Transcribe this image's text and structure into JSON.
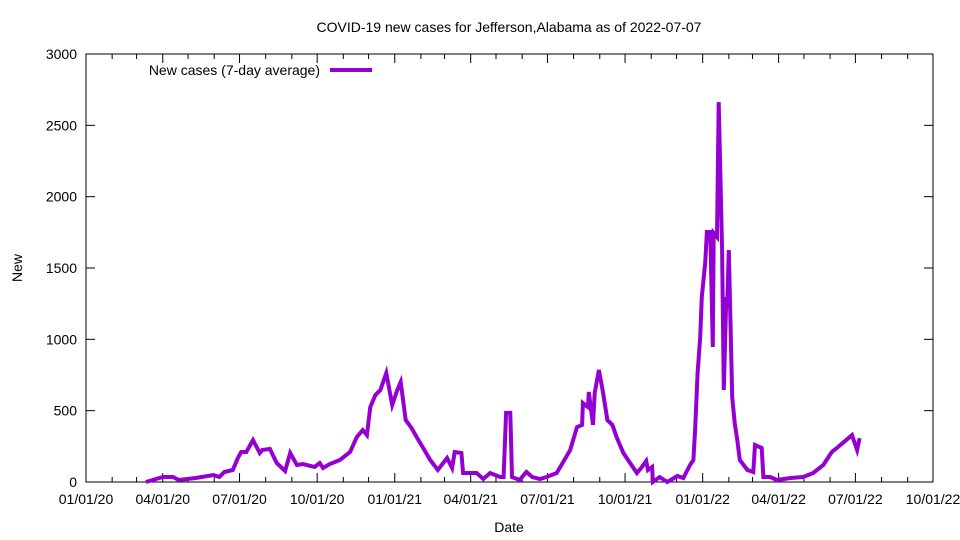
{
  "chart_data": {
    "type": "line",
    "title": "COVID-19 new cases for Jefferson,Alabama as of 2022-07-07",
    "xlabel": "Date",
    "ylabel": "New",
    "xlim": [
      "2020-01-01",
      "2022-10-01"
    ],
    "ylim": [
      0,
      3000
    ],
    "xticks": [
      "01/01/20",
      "04/01/20",
      "07/01/20",
      "10/01/20",
      "01/01/21",
      "04/01/21",
      "07/01/21",
      "10/01/21",
      "01/01/22",
      "04/01/22",
      "07/01/22",
      "10/01/22"
    ],
    "xtick_dates": [
      "2020-01-01",
      "2020-04-01",
      "2020-07-01",
      "2020-10-01",
      "2021-01-01",
      "2021-04-01",
      "2021-07-01",
      "2021-10-01",
      "2022-01-01",
      "2022-04-01",
      "2022-07-01",
      "2022-10-01"
    ],
    "yticks": [
      0,
      500,
      1000,
      1500,
      2000,
      2500,
      3000
    ],
    "grid": false,
    "legend_position": "top-left",
    "series": [
      {
        "name": "New cases (7-day average)",
        "color": "#9400d3",
        "points": [
          [
            "2020-03-12",
            0
          ],
          [
            "2020-04-01",
            35
          ],
          [
            "2020-04-13",
            35
          ],
          [
            "2020-04-20",
            14
          ],
          [
            "2020-05-10",
            28
          ],
          [
            "2020-05-31",
            49
          ],
          [
            "2020-06-07",
            35
          ],
          [
            "2020-06-13",
            70
          ],
          [
            "2020-06-23",
            84
          ],
          [
            "2020-06-29",
            168
          ],
          [
            "2020-07-03",
            210
          ],
          [
            "2020-07-09",
            210
          ],
          [
            "2020-07-17",
            294
          ],
          [
            "2020-07-25",
            203
          ],
          [
            "2020-07-28",
            224
          ],
          [
            "2020-08-06",
            232
          ],
          [
            "2020-08-14",
            133
          ],
          [
            "2020-08-24",
            77
          ],
          [
            "2020-08-30",
            203
          ],
          [
            "2020-09-07",
            119
          ],
          [
            "2020-09-14",
            126
          ],
          [
            "2020-09-28",
            105
          ],
          [
            "2020-10-04",
            133
          ],
          [
            "2020-10-08",
            98
          ],
          [
            "2020-10-16",
            126
          ],
          [
            "2020-10-28",
            154
          ],
          [
            "2020-11-09",
            210
          ],
          [
            "2020-11-17",
            315
          ],
          [
            "2020-11-24",
            364
          ],
          [
            "2020-11-29",
            329
          ],
          [
            "2020-12-03",
            526
          ],
          [
            "2020-12-09",
            610
          ],
          [
            "2020-12-15",
            645
          ],
          [
            "2020-12-22",
            764
          ],
          [
            "2020-12-29",
            540
          ],
          [
            "2021-01-04",
            645
          ],
          [
            "2021-01-08",
            701
          ],
          [
            "2021-01-14",
            434
          ],
          [
            "2021-01-21",
            378
          ],
          [
            "2021-01-29",
            294
          ],
          [
            "2021-02-03",
            245
          ],
          [
            "2021-02-12",
            154
          ],
          [
            "2021-02-21",
            84
          ],
          [
            "2021-03-04",
            168
          ],
          [
            "2021-03-10",
            98
          ],
          [
            "2021-03-13",
            210
          ],
          [
            "2021-03-21",
            203
          ],
          [
            "2021-03-23",
            63
          ],
          [
            "2021-04-08",
            63
          ],
          [
            "2021-04-16",
            21
          ],
          [
            "2021-04-24",
            63
          ],
          [
            "2021-05-06",
            35
          ],
          [
            "2021-05-10",
            35
          ],
          [
            "2021-05-13",
            484
          ],
          [
            "2021-05-18",
            484
          ],
          [
            "2021-05-20",
            35
          ],
          [
            "2021-05-29",
            14
          ],
          [
            "2021-06-06",
            70
          ],
          [
            "2021-06-13",
            35
          ],
          [
            "2021-06-22",
            21
          ],
          [
            "2021-06-30",
            35
          ],
          [
            "2021-07-12",
            63
          ],
          [
            "2021-07-19",
            133
          ],
          [
            "2021-07-28",
            224
          ],
          [
            "2021-08-05",
            385
          ],
          [
            "2021-08-11",
            400
          ],
          [
            "2021-08-12",
            554
          ],
          [
            "2021-08-18",
            526
          ],
          [
            "2021-08-19",
            631
          ],
          [
            "2021-08-24",
            400
          ],
          [
            "2021-08-26",
            624
          ],
          [
            "2021-08-31",
            785
          ],
          [
            "2021-09-05",
            624
          ],
          [
            "2021-09-10",
            434
          ],
          [
            "2021-09-16",
            400
          ],
          [
            "2021-09-21",
            315
          ],
          [
            "2021-09-29",
            203
          ],
          [
            "2021-10-07",
            133
          ],
          [
            "2021-10-15",
            63
          ],
          [
            "2021-10-21",
            105
          ],
          [
            "2021-10-26",
            147
          ],
          [
            "2021-10-28",
            84
          ],
          [
            "2021-11-02",
            105
          ],
          [
            "2021-11-03",
            0
          ],
          [
            "2021-11-11",
            35
          ],
          [
            "2021-11-20",
            0
          ],
          [
            "2021-12-02",
            42
          ],
          [
            "2021-12-09",
            28
          ],
          [
            "2021-12-17",
            119
          ],
          [
            "2021-12-21",
            154
          ],
          [
            "2021-12-23",
            364
          ],
          [
            "2021-12-26",
            764
          ],
          [
            "2021-12-29",
            1016
          ],
          [
            "2021-12-31",
            1297
          ],
          [
            "2022-01-04",
            1535
          ],
          [
            "2022-01-06",
            1752
          ],
          [
            "2022-01-10",
            1752
          ],
          [
            "2022-01-13",
            946
          ],
          [
            "2022-01-14",
            1745
          ],
          [
            "2022-01-18",
            1717
          ],
          [
            "2022-01-20",
            2663
          ],
          [
            "2022-01-24",
            1626
          ],
          [
            "2022-01-26",
            645
          ],
          [
            "2022-01-29",
            1297
          ],
          [
            "2022-01-30",
            1227
          ],
          [
            "2022-02-01",
            1626
          ],
          [
            "2022-02-05",
            596
          ],
          [
            "2022-02-08",
            413
          ],
          [
            "2022-02-11",
            294
          ],
          [
            "2022-02-14",
            154
          ],
          [
            "2022-02-23",
            84
          ],
          [
            "2022-03-02",
            70
          ],
          [
            "2022-03-04",
            259
          ],
          [
            "2022-03-12",
            238
          ],
          [
            "2022-03-14",
            35
          ],
          [
            "2022-03-22",
            35
          ],
          [
            "2022-03-30",
            14
          ],
          [
            "2022-04-15",
            28
          ],
          [
            "2022-04-30",
            35
          ],
          [
            "2022-05-12",
            63
          ],
          [
            "2022-05-24",
            119
          ],
          [
            "2022-06-03",
            210
          ],
          [
            "2022-06-09",
            238
          ],
          [
            "2022-06-16",
            273
          ],
          [
            "2022-06-27",
            329
          ],
          [
            "2022-07-03",
            224
          ],
          [
            "2022-07-06",
            308
          ]
        ]
      }
    ]
  }
}
